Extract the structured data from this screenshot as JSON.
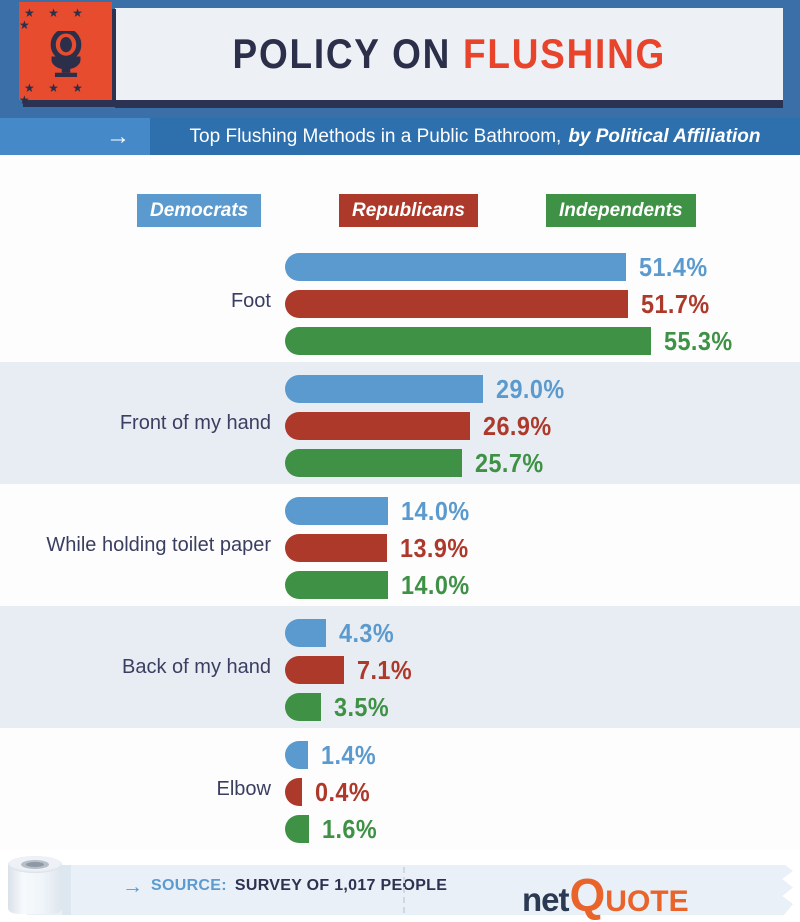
{
  "header": {
    "title_prefix": "POLICY ON",
    "title_accent": "FLUSHING",
    "arrow": "→",
    "badge_stars": "★ ★ ★ ★",
    "banner_text": "Top Flushing Methods in a Public Bathroom,",
    "banner_text_bold": "by Political Affiliation"
  },
  "legend": [
    {
      "label": "Democrats",
      "color": "#5b9ace"
    },
    {
      "label": "Republicans",
      "color": "#ad392b"
    },
    {
      "label": "Independents",
      "color": "#3e9145"
    }
  ],
  "chart_data": {
    "type": "bar",
    "orientation": "horizontal",
    "title": "Policy on Flushing — Top Flushing Methods in a Public Bathroom, by Political Affiliation",
    "unit": "%",
    "categories": [
      "Foot",
      "Front of my hand",
      "While holding toilet paper",
      "Back of my hand",
      "Elbow"
    ],
    "series": [
      {
        "name": "Democrats",
        "color": "#5b9ace",
        "values": [
          51.4,
          29.0,
          14.0,
          4.3,
          1.4
        ],
        "display": [
          "51.4%",
          "29.0%",
          "14.0%",
          "4.3%",
          "1.4%"
        ]
      },
      {
        "name": "Republicans",
        "color": "#ad392b",
        "values": [
          51.7,
          26.9,
          13.9,
          7.1,
          0.4
        ],
        "display": [
          "51.7%",
          "26.9%",
          "13.9%",
          "7.1%",
          "0.4%"
        ]
      },
      {
        "name": "Independents",
        "color": "#3e9145",
        "values": [
          55.3,
          25.7,
          14.0,
          3.5,
          1.6
        ],
        "display": [
          "55.3%",
          "25.7%",
          "14.0%",
          "3.5%",
          "1.6%"
        ]
      }
    ],
    "xlim": [
      0,
      60
    ],
    "grid": false,
    "legend_position": "top"
  },
  "footer": {
    "arrow": "→",
    "source_label": "SOURCE:",
    "source_text": "SURVEY OF 1,017 PEOPLE",
    "logo": {
      "net": "net",
      "q": "Q",
      "uote": "UOTE"
    }
  },
  "colors": {
    "header_background": "#3a70a7",
    "card_background": "#edf0f5",
    "badge_red": "#e74c2f",
    "navy": "#2b2f4a",
    "title_accent_red": "#e8442c",
    "banner_blue": "#2e6fae",
    "banner_arrow_box_blue": "#4589c8",
    "stripe_row": "#e8edf3",
    "logo_orange": "#e8642a"
  }
}
